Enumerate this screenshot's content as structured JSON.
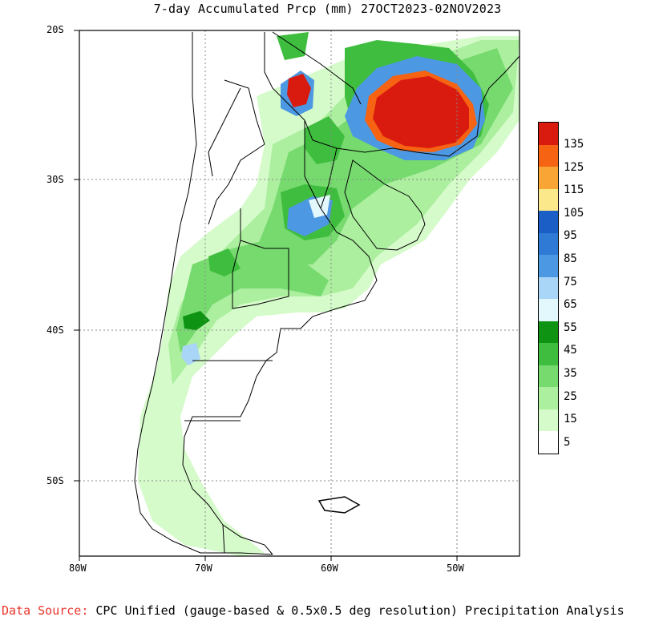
{
  "title": "7-day Accumulated Prcp (mm) 27OCT2023-02NOV2023",
  "lat_labels": [
    "20S",
    "30S",
    "40S",
    "50S"
  ],
  "lon_labels": [
    "80W",
    "70W",
    "60W",
    "50W"
  ],
  "legend": {
    "labels": [
      "135",
      "125",
      "115",
      "105",
      "95",
      "85",
      "75",
      "65",
      "55",
      "45",
      "35",
      "25",
      "15",
      "5"
    ],
    "colors": [
      "#d91a0f",
      "#f56313",
      "#f8a535",
      "#fbe88a",
      "#1b5fc6",
      "#2f7ad5",
      "#4d98e2",
      "#a9d5f7",
      "#e3f8fd",
      "#0e9412",
      "#3fbd3e",
      "#76da6f",
      "#acef9f",
      "#d6fbcb",
      "#ffffff"
    ]
  },
  "footer": {
    "source_label": "Data Source:",
    "source_text": "CPC Unified (gauge-based & 0.5x0.5 deg resolution) Precipitation Analysis"
  }
}
